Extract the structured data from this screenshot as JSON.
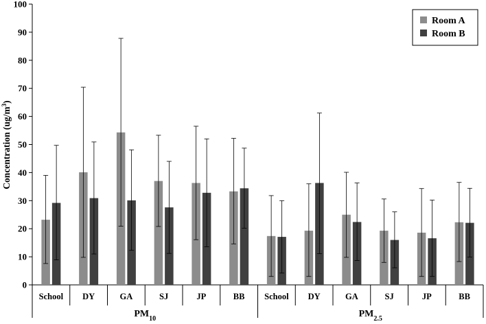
{
  "chart_data": {
    "type": "bar",
    "title": "",
    "ylabel": "Concentration (ug/m³)",
    "ylabel_main": "Concentration (ug/m",
    "ylabel_sup": "3",
    "ylabel_end": ")",
    "ylim": [
      0,
      100
    ],
    "yticks": [
      0,
      10,
      20,
      30,
      40,
      50,
      60,
      70,
      80,
      90,
      100
    ],
    "grid": false,
    "legend_position": "top-right",
    "groups": [
      {
        "label_main": "PM",
        "label_sub": "10",
        "categories": [
          "School",
          "DY",
          "GA",
          "SJ",
          "JP",
          "BB"
        ]
      },
      {
        "label_main": "PM",
        "label_sub": "2.5",
        "categories": [
          "School",
          "DY",
          "GA",
          "SJ",
          "JP",
          "BB"
        ]
      }
    ],
    "categories": [
      "School",
      "DY",
      "GA",
      "SJ",
      "JP",
      "BB",
      "School",
      "DY",
      "GA",
      "SJ",
      "JP",
      "BB"
    ],
    "series": [
      {
        "name": "Room A",
        "color": "#8c8c8c",
        "values": [
          23.2,
          40.1,
          54.3,
          37.0,
          36.3,
          33.3,
          17.4,
          19.3,
          25.0,
          19.3,
          18.6,
          22.3
        ],
        "err_low": [
          7.6,
          9.8,
          20.9,
          20.8,
          16.1,
          14.6,
          3.0,
          3.0,
          9.8,
          8.0,
          3.0,
          8.3
        ],
        "err_high": [
          39.0,
          70.4,
          87.8,
          53.3,
          56.5,
          52.2,
          31.8,
          36.0,
          40.1,
          30.6,
          34.3,
          36.5
        ]
      },
      {
        "name": "Room B",
        "color": "#404040",
        "values": [
          29.2,
          30.9,
          30.1,
          27.6,
          32.8,
          34.4,
          17.1,
          36.3,
          22.4,
          16.0,
          16.6,
          22.1
        ],
        "err_low": [
          8.9,
          11.0,
          12.3,
          11.2,
          13.6,
          20.2,
          4.2,
          11.1,
          8.7,
          6.1,
          3.0,
          9.9
        ],
        "err_high": [
          49.7,
          50.9,
          48.1,
          44.0,
          52.0,
          48.7,
          30.0,
          61.2,
          36.3,
          26.0,
          30.2,
          34.4
        ]
      }
    ]
  }
}
